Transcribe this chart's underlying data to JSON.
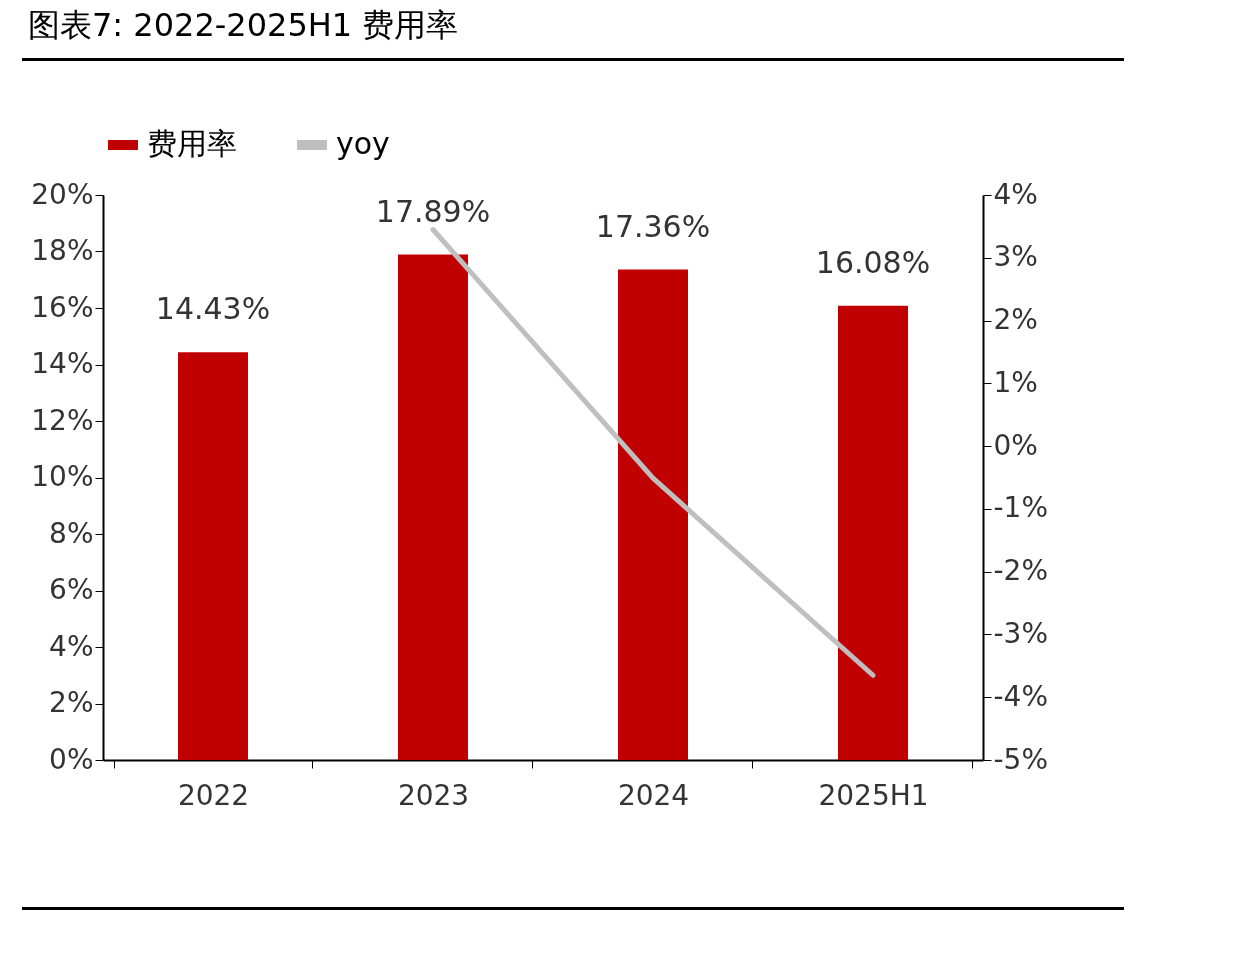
{
  "chart_data": {
    "type": "bar",
    "title": "图表7: 2022-2025H1 费用率",
    "categories": [
      "2022",
      "2023",
      "2024",
      "2025H1"
    ],
    "series": [
      {
        "name": "费用率",
        "color": "#c00000",
        "values": [
          14.43,
          17.89,
          17.36,
          16.08
        ],
        "value_labels": [
          "14.43%",
          "17.89%",
          "17.36%",
          "16.08%"
        ]
      },
      {
        "type": "line",
        "name": "yoy",
        "color": "#bfbfbf",
        "axis": "y2",
        "values": [
          null,
          3.45,
          -0.51,
          -3.65
        ]
      }
    ],
    "ylim": [
      0,
      20
    ],
    "yticks": [
      {
        "value": 0,
        "label": "0%"
      },
      {
        "value": 2,
        "label": "2%"
      },
      {
        "value": 4,
        "label": "4%"
      },
      {
        "value": 6,
        "label": "6%"
      },
      {
        "value": 8,
        "label": "8%"
      },
      {
        "value": 10,
        "label": "10%"
      },
      {
        "value": 12,
        "label": "12%"
      },
      {
        "value": 14,
        "label": "14%"
      },
      {
        "value": 16,
        "label": "16%"
      },
      {
        "value": 18,
        "label": "18%"
      },
      {
        "value": 20,
        "label": "20%"
      }
    ],
    "y2lim": [
      -5,
      4
    ],
    "y2ticks": [
      {
        "value": -5,
        "label": "-5%"
      },
      {
        "value": -4,
        "label": "-4%"
      },
      {
        "value": -3,
        "label": "-3%"
      },
      {
        "value": -2,
        "label": "-2%"
      },
      {
        "value": -1,
        "label": "-1%"
      },
      {
        "value": 0,
        "label": "0%"
      },
      {
        "value": 1,
        "label": "1%"
      },
      {
        "value": 2,
        "label": "2%"
      },
      {
        "value": 3,
        "label": "3%"
      },
      {
        "value": 4,
        "label": "4%"
      }
    ],
    "legend": "top"
  }
}
